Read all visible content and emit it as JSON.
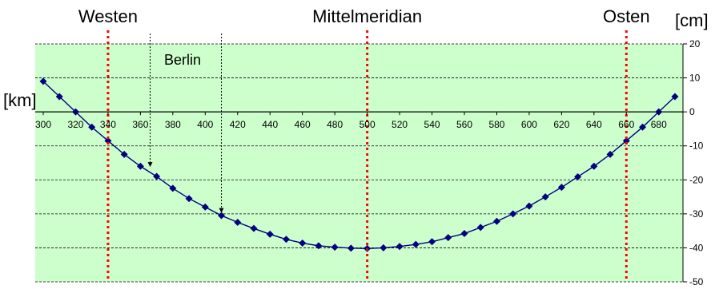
{
  "chart_data": {
    "type": "line",
    "title": "",
    "x_unit_label": "[km]",
    "y_unit_label": "[cm]",
    "xlim": [
      300,
      700
    ],
    "ylim": [
      -50,
      20
    ],
    "x_ticks": [
      "300",
      "320",
      "340",
      "360",
      "380",
      "400",
      "420",
      "440",
      "460",
      "480",
      "500",
      "520",
      "540",
      "560",
      "580",
      "600",
      "620",
      "640",
      "660",
      "680"
    ],
    "y_ticks": [
      "20",
      "10",
      "0",
      "-10",
      "-20",
      "-30",
      "-40",
      "-50"
    ],
    "grid": true,
    "colors": {
      "plot_bg": "#ccffcc",
      "series": "#000080",
      "meridian": "#ff0000",
      "grid": "#000000"
    },
    "series": [
      {
        "x": [
          300,
          310,
          320,
          330,
          340,
          350,
          360,
          370,
          380,
          390,
          400,
          410,
          420,
          430,
          440,
          450,
          460,
          470,
          480,
          490,
          500,
          510,
          520,
          530,
          540,
          550,
          560,
          570,
          580,
          590,
          600,
          610,
          620,
          630,
          640,
          650,
          660,
          670,
          680,
          690
        ],
        "y": [
          9,
          4.5,
          0,
          -4.5,
          -8.5,
          -12.5,
          -16,
          -19,
          -22.5,
          -25.5,
          -28,
          -30.5,
          -32.5,
          -34.3,
          -36,
          -37.5,
          -38.6,
          -39.4,
          -39.8,
          -40.1,
          -40.2,
          -40,
          -39.6,
          -39,
          -38.2,
          -37,
          -35.8,
          -34,
          -32.2,
          -30,
          -27.7,
          -25,
          -22.2,
          -19.1,
          -16,
          -12.5,
          -8.5,
          -4.5,
          0,
          4.5
        ]
      }
    ],
    "vertical_lines": [
      {
        "x": 340,
        "label": "Westen"
      },
      {
        "x": 500,
        "label": "Mittelmeridian"
      },
      {
        "x": 660,
        "label": "Osten"
      }
    ],
    "annotations": [
      {
        "text": "Berlin",
        "arrows": [
          {
            "x": 366,
            "y_data": -17
          },
          {
            "x": 410,
            "y_data": -30.5
          }
        ]
      }
    ]
  }
}
